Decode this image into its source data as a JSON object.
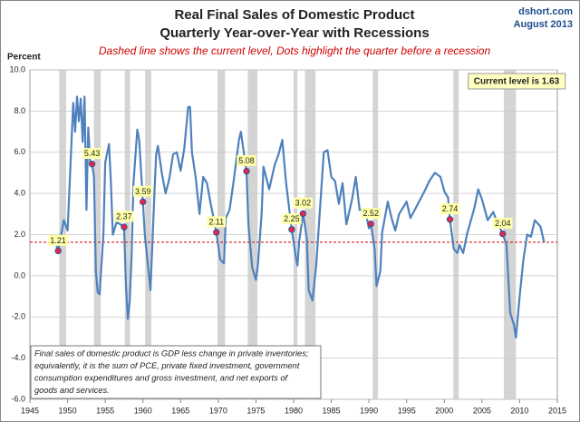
{
  "chart_data": {
    "type": "line",
    "title": [
      "Real Final Sales of Domestic Product",
      "Quarterly Year-over-Year with Recessions"
    ],
    "subtitle": "Dashed line shows the current level, Dots highlight the quarter before a recession",
    "source": [
      "dshort.com",
      "August 2013"
    ],
    "y_label": "Percent",
    "note": [
      "Final sales of domestic product is GDP less change in private inventories;",
      "equivalently, it is the sum of PCE, private fixed investment, government",
      "consumption expenditures and gross investment, and net exports of",
      "goods and services."
    ],
    "xlim": [
      1945,
      2015
    ],
    "xticks": [
      1945,
      1950,
      1955,
      1960,
      1965,
      1970,
      1975,
      1980,
      1985,
      1990,
      1995,
      2000,
      2005,
      2010,
      2015
    ],
    "ylim": [
      -6,
      10
    ],
    "yticks": [
      {
        "value": -6,
        "label": "-6.0"
      },
      {
        "value": -4,
        "label": "-4.0"
      },
      {
        "value": -2,
        "label": "-2.0"
      },
      {
        "value": 0,
        "label": "0.0"
      },
      {
        "value": 2,
        "label": "2.0"
      },
      {
        "value": 4,
        "label": "4.0"
      },
      {
        "value": 6,
        "label": "6.0"
      },
      {
        "value": 8,
        "label": "8.0"
      },
      {
        "value": 10,
        "label": "10.0"
      }
    ],
    "grid": true,
    "recessions": [
      [
        1948.9,
        1949.8
      ],
      [
        1953.5,
        1954.4
      ],
      [
        1957.6,
        1958.3
      ],
      [
        1960.3,
        1961.1
      ],
      [
        1969.9,
        1970.9
      ],
      [
        1973.9,
        1975.2
      ],
      [
        1980.0,
        1980.5
      ],
      [
        1981.5,
        1982.9
      ],
      [
        1990.5,
        1991.2
      ],
      [
        2001.2,
        2001.9
      ],
      [
        2007.9,
        2009.5
      ]
    ],
    "recession_color": "#d4d4d4",
    "x": [
      1948.25,
      1948.75,
      1949.5,
      1950.0,
      1950.75,
      1951.0,
      1951.25,
      1951.5,
      1951.75,
      1952.0,
      1952.25,
      1952.5,
      1952.75,
      1953.0,
      1953.25,
      1953.5,
      1953.75,
      1954.0,
      1954.25,
      1954.75,
      1955.0,
      1955.5,
      1955.75,
      1956.0,
      1956.5,
      1957.0,
      1957.5,
      1957.75,
      1958.0,
      1958.25,
      1958.5,
      1958.75,
      1959.25,
      1959.5,
      1960.0,
      1960.25,
      1960.75,
      1961.0,
      1961.25,
      1961.5,
      1961.75,
      1962.0,
      1962.5,
      1963.0,
      1963.5,
      1964.0,
      1964.5,
      1965.0,
      1965.5,
      1966.0,
      1966.25,
      1966.5,
      1967.0,
      1967.5,
      1968.0,
      1968.5,
      1969.0,
      1969.75,
      1970.25,
      1970.75,
      1971.0,
      1971.5,
      1972.0,
      1972.75,
      1973.0,
      1973.75,
      1974.0,
      1974.5,
      1975.0,
      1975.25,
      1975.75,
      1976.0,
      1976.75,
      1977.5,
      1978.0,
      1978.5,
      1979.0,
      1979.75,
      1980.25,
      1980.5,
      1980.75,
      1981.25,
      1981.75,
      1982.0,
      1982.5,
      1983.0,
      1984.0,
      1984.5,
      1985.0,
      1985.5,
      1986.0,
      1986.5,
      1987.0,
      1987.75,
      1988.25,
      1988.75,
      1989.5,
      1990.0,
      1990.25,
      1990.75,
      1991.0,
      1991.5,
      1991.75,
      1992.5,
      1993.0,
      1993.5,
      1994.0,
      1995.0,
      1995.5,
      1996.5,
      1997.5,
      1998.0,
      1998.75,
      1999.5,
      2000.0,
      2000.5,
      2000.75,
      2001.25,
      2001.75,
      2002.0,
      2002.5,
      2003.0,
      2004.0,
      2004.5,
      2005.0,
      2005.75,
      2006.5,
      2007.0,
      2007.75,
      2008.25,
      2008.75,
      2009.25,
      2009.5,
      2010.0,
      2010.5,
      2011.0,
      2011.5,
      2012.0,
      2012.5,
      2012.75,
      2013.25
    ],
    "series": [
      {
        "name": "Real Final Sales YoY",
        "color": "#4f81bd",
        "values": [
          1.8,
          1.21,
          2.7,
          2.2,
          8.4,
          7.0,
          8.7,
          7.5,
          8.6,
          6.5,
          8.7,
          3.2,
          7.2,
          5.5,
          5.43,
          4.8,
          0.2,
          -0.8,
          -0.9,
          2.0,
          5.5,
          6.4,
          4.5,
          2.0,
          2.6,
          2.5,
          2.37,
          -0.5,
          -2.1,
          -1.2,
          1.0,
          4.5,
          7.1,
          6.6,
          3.59,
          2.0,
          0.2,
          -0.7,
          1.5,
          3.8,
          5.9,
          6.3,
          5.0,
          4.0,
          4.7,
          5.9,
          6.0,
          5.1,
          6.2,
          8.2,
          8.2,
          6.0,
          4.8,
          3.0,
          4.8,
          4.5,
          3.5,
          2.11,
          0.8,
          0.6,
          2.8,
          3.2,
          4.5,
          6.6,
          7.0,
          5.08,
          2.5,
          0.4,
          -0.2,
          0.5,
          3.0,
          5.3,
          4.2,
          5.4,
          5.9,
          6.6,
          4.5,
          2.25,
          1.0,
          0.5,
          1.7,
          3.02,
          1.8,
          -0.7,
          -1.2,
          0.5,
          6.0,
          6.1,
          4.8,
          4.6,
          3.5,
          4.5,
          2.5,
          3.7,
          4.8,
          3.2,
          3.2,
          2.3,
          2.52,
          1.3,
          -0.5,
          0.2,
          2.1,
          3.6,
          2.8,
          2.2,
          3.0,
          3.6,
          2.8,
          3.5,
          4.2,
          4.6,
          5.0,
          4.8,
          4.1,
          3.8,
          2.74,
          1.3,
          1.1,
          1.5,
          1.1,
          2.0,
          3.3,
          4.2,
          3.7,
          2.7,
          3.1,
          2.6,
          2.04,
          1.5,
          -1.8,
          -2.4,
          -3.0,
          -1.0,
          0.8,
          2.0,
          1.9,
          2.7,
          2.5,
          2.4,
          1.63
        ]
      }
    ],
    "highlights": {
      "color": "#e8254a",
      "x": [
        1948.75,
        1953.25,
        1957.5,
        1960.0,
        1969.75,
        1973.75,
        1979.75,
        1981.25,
        1990.25,
        2000.75,
        2007.75
      ],
      "values": [
        1.21,
        5.43,
        2.37,
        3.59,
        2.11,
        5.08,
        2.25,
        3.02,
        2.52,
        2.74,
        2.04
      ]
    },
    "current_level": {
      "value": 1.63,
      "label": "Current level is 1.63",
      "color": "#d00000"
    }
  }
}
